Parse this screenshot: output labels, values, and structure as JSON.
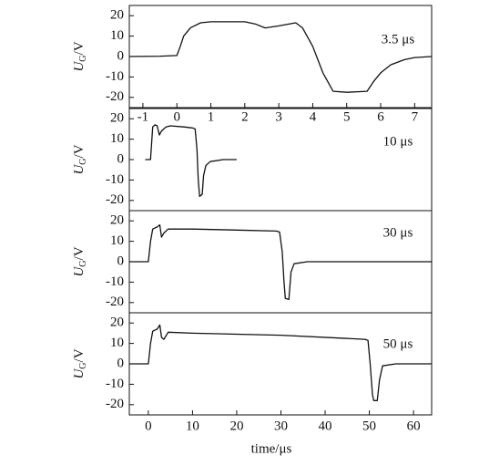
{
  "chart_data": [
    {
      "type": "line",
      "annotation": "3.5 μs",
      "ylabel_symbol": "U",
      "ylabel_subscript": "G",
      "ylabel_unit": "/V",
      "color": "#111111",
      "x": [
        -1.4,
        -0.5,
        0,
        0.1,
        0.2,
        0.4,
        0.7,
        1,
        2,
        2.3,
        2.6,
        3,
        3.5,
        3.7,
        4,
        4.3,
        4.6,
        5,
        5.6,
        5.8,
        6,
        6.3,
        6.7,
        7,
        7.5
      ],
      "values": [
        0,
        0.2,
        0.5,
        5,
        10,
        14,
        16.5,
        17,
        17,
        16,
        14,
        15,
        16.5,
        14,
        5,
        -8,
        -17,
        -17.5,
        -17,
        -12,
        -8,
        -4,
        -1.5,
        -0.5,
        0
      ],
      "xlim": [
        -1.4,
        7.5
      ],
      "xticks": [
        -1,
        0,
        1,
        2,
        3,
        4,
        5,
        6,
        7
      ],
      "ylim": [
        -25,
        25
      ],
      "yticks": [
        -20,
        -10,
        0,
        10,
        20
      ]
    },
    {
      "type": "line",
      "annotation": "10 μs",
      "ylabel_symbol": "U",
      "ylabel_subscript": "G",
      "ylabel_unit": "/V",
      "color": "#111111",
      "x": [
        -0.7,
        0.5,
        0.8,
        1,
        1.5,
        2,
        2.5,
        3,
        4,
        5,
        8,
        10,
        10.6,
        11,
        11.3,
        11.6,
        12.2,
        12.5,
        13,
        14,
        17,
        20
      ],
      "values": [
        0,
        0,
        10,
        16,
        17,
        16.5,
        12,
        14,
        16,
        16.5,
        16,
        15.5,
        15,
        5,
        -10,
        -18,
        -17,
        -8,
        -3,
        -1,
        0,
        0
      ],
      "xlim": [
        -4.3,
        64.1
      ],
      "ylim": [
        -25,
        25
      ],
      "yticks": [
        -20,
        -10,
        0,
        10,
        20
      ]
    },
    {
      "type": "line",
      "annotation": "30 μs",
      "ylabel_symbol": "U",
      "ylabel_subscript": "G",
      "ylabel_unit": "/V",
      "color": "#111111",
      "x": [
        -4.3,
        0,
        0.5,
        1,
        2,
        2.6,
        3,
        3.5,
        4.5,
        10,
        20,
        29,
        29.7,
        30.3,
        30.7,
        31,
        31.8,
        32.3,
        33,
        36,
        64.1
      ],
      "values": [
        0,
        0,
        10,
        16,
        17,
        18,
        12,
        14,
        16,
        16,
        15.5,
        15,
        14.5,
        5,
        -10,
        -18,
        -18.5,
        -5,
        -1,
        0,
        0
      ],
      "xlim": [
        -4.3,
        64.1
      ],
      "ylim": [
        -25,
        25
      ],
      "yticks": [
        -20,
        -10,
        0,
        10,
        20
      ]
    },
    {
      "type": "line",
      "annotation": "50 μs",
      "ylabel_symbol": "U",
      "ylabel_subscript": "G",
      "ylabel_unit": "/V",
      "color": "#111111",
      "xlabel": "time/μs",
      "x": [
        -4.3,
        0,
        0.5,
        1,
        2,
        2.6,
        3,
        3.5,
        4.5,
        10,
        30,
        49,
        49.7,
        50.2,
        50.7,
        51,
        51.8,
        52.3,
        53,
        56,
        64.1
      ],
      "values": [
        0,
        0,
        10,
        16,
        17,
        19,
        13,
        12,
        15.5,
        15,
        14,
        12,
        11.5,
        0,
        -15,
        -18,
        -18,
        -8,
        -1,
        0,
        0
      ],
      "xlim": [
        -4.3,
        64.1
      ],
      "xticks": [
        0,
        10,
        20,
        30,
        40,
        50,
        60
      ],
      "ylim": [
        -25,
        25
      ],
      "yticks": [
        -20,
        -10,
        0,
        10,
        20
      ]
    }
  ]
}
